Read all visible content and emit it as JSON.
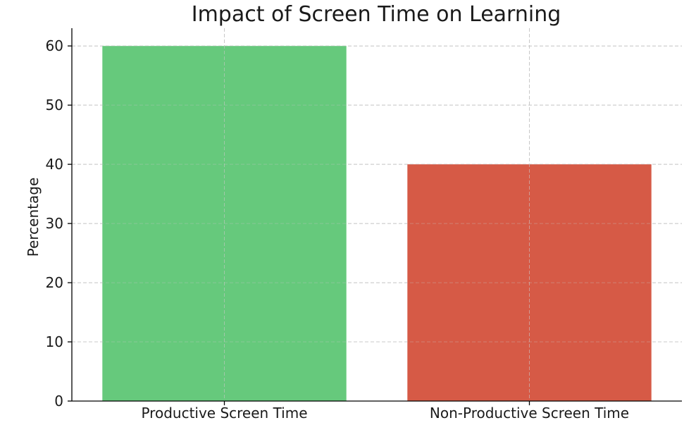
{
  "chart_data": {
    "type": "bar",
    "title": "Impact of Screen Time on Learning",
    "xlabel": "",
    "ylabel": "Percentage",
    "categories": [
      "Productive Screen Time",
      "Non-Productive Screen Time"
    ],
    "values": [
      60,
      40
    ],
    "colors": [
      "#66c97c",
      "#d65a46"
    ],
    "ylim": [
      0,
      63
    ],
    "yticks": [
      0,
      10,
      20,
      30,
      40,
      50,
      60
    ],
    "grid": true,
    "legend": "none"
  }
}
